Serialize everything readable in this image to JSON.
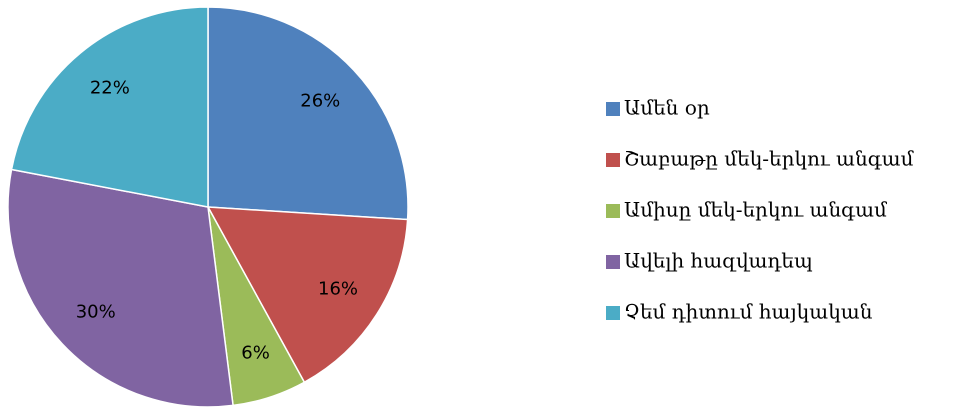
{
  "chart_data": {
    "type": "pie",
    "categories": [
      "Ամեն օր",
      "Շաբաթը մեկ-երկու անգամ",
      "Ամիսը մեկ-երկու անգամ",
      "Ավելի հազվադեպ",
      "Չեմ դիտում հայկական"
    ],
    "values": [
      26,
      16,
      6,
      30,
      22
    ],
    "value_labels": [
      "26%",
      "16%",
      "6%",
      "30%",
      "22%"
    ],
    "colors": [
      "#4f81bd",
      "#c0504d",
      "#9bbb59",
      "#8064a2",
      "#4bacc6"
    ],
    "legend": "right"
  }
}
